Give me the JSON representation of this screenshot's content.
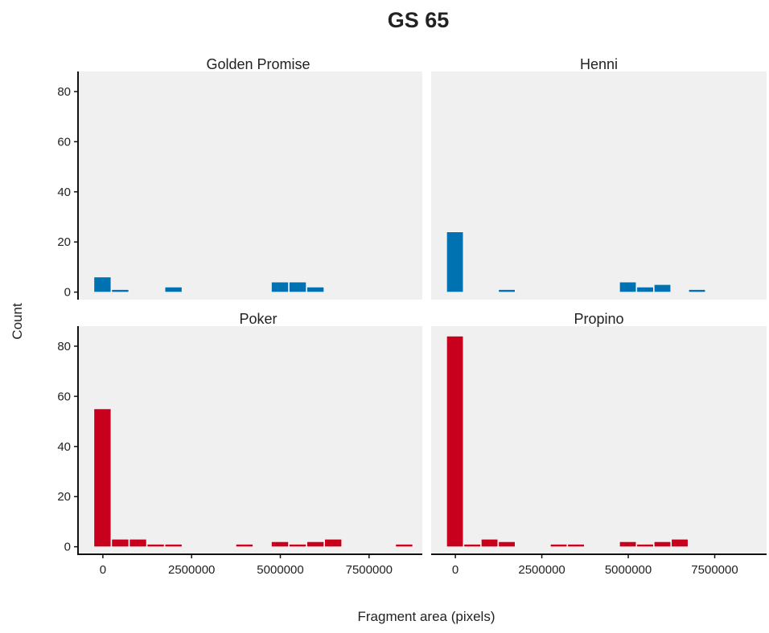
{
  "chart_data": {
    "type": "bar",
    "title": "GS 65",
    "xlabel": "Fragment area (pixels)",
    "ylabel": "Count",
    "ylim": [
      -3,
      88
    ],
    "xlim": [
      -700000,
      9000000
    ],
    "x_ticks": [
      0,
      2500000,
      5000000,
      7500000
    ],
    "x_tick_labels": [
      "0",
      "2500000",
      "5000000",
      "7500000"
    ],
    "y_ticks": [
      0,
      20,
      40,
      60,
      80
    ],
    "y_tick_labels": [
      "0",
      "20",
      "40",
      "60",
      "80"
    ],
    "bin_width": 500000,
    "grid": false,
    "panels": [
      {
        "name": "Golden Promise",
        "color": "#0072B2",
        "bins": [
          {
            "x": 0,
            "count": 6
          },
          {
            "x": 500000,
            "count": 1
          },
          {
            "x": 2000000,
            "count": 2
          },
          {
            "x": 5000000,
            "count": 4
          },
          {
            "x": 5500000,
            "count": 4
          },
          {
            "x": 6000000,
            "count": 2
          }
        ]
      },
      {
        "name": "Henni",
        "color": "#0072B2",
        "bins": [
          {
            "x": 0,
            "count": 24
          },
          {
            "x": 1500000,
            "count": 1
          },
          {
            "x": 5000000,
            "count": 4
          },
          {
            "x": 5500000,
            "count": 2
          },
          {
            "x": 6000000,
            "count": 3
          },
          {
            "x": 7000000,
            "count": 1
          }
        ]
      },
      {
        "name": "Poker",
        "color": "#C8001E",
        "bins": [
          {
            "x": 0,
            "count": 55
          },
          {
            "x": 500000,
            "count": 3
          },
          {
            "x": 1000000,
            "count": 3
          },
          {
            "x": 1500000,
            "count": 1
          },
          {
            "x": 2000000,
            "count": 1
          },
          {
            "x": 4000000,
            "count": 1
          },
          {
            "x": 5000000,
            "count": 2
          },
          {
            "x": 5500000,
            "count": 1
          },
          {
            "x": 6000000,
            "count": 2
          },
          {
            "x": 6500000,
            "count": 3
          },
          {
            "x": 8500000,
            "count": 1
          }
        ]
      },
      {
        "name": "Propino",
        "color": "#C8001E",
        "bins": [
          {
            "x": 0,
            "count": 84
          },
          {
            "x": 500000,
            "count": 1
          },
          {
            "x": 1000000,
            "count": 3
          },
          {
            "x": 1500000,
            "count": 2
          },
          {
            "x": 3000000,
            "count": 1
          },
          {
            "x": 3500000,
            "count": 1
          },
          {
            "x": 5000000,
            "count": 2
          },
          {
            "x": 5500000,
            "count": 1
          },
          {
            "x": 6000000,
            "count": 2
          },
          {
            "x": 6500000,
            "count": 3
          }
        ]
      }
    ]
  }
}
